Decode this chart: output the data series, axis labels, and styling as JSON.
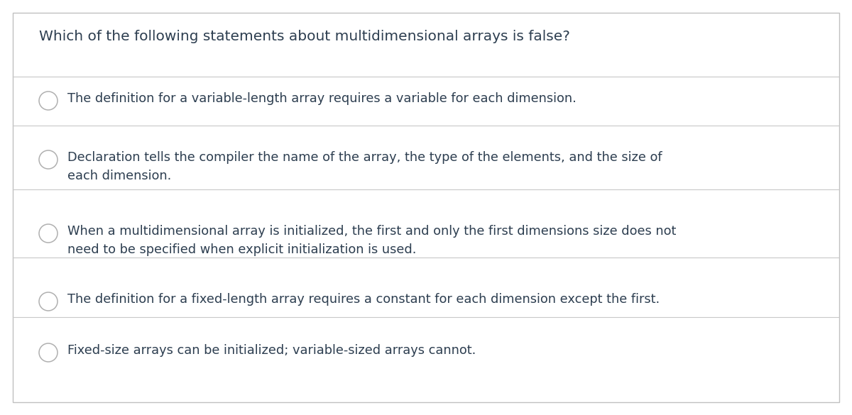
{
  "background_color": "#ffffff",
  "border_color": "#c8c8c8",
  "title": "Which of the following statements about multidimensional arrays is false?",
  "title_color": "#2d3e50",
  "title_fontsize": 14.5,
  "options": [
    "The definition for a variable-length array requires a variable for each dimension.",
    "Declaration tells the compiler the name of the array, the type of the elements, and the size of\neach dimension.",
    "When a multidimensional array is initialized, the first and only the first dimensions size does not\nneed to be specified when explicit initialization is used.",
    "The definition for a fixed-length array requires a constant for each dimension except the first.",
    "Fixed-size arrays can be initialized; variable-sized arrays cannot."
  ],
  "option_color": "#2d3e50",
  "option_fontsize": 12.8,
  "divider_color": "#c8c8c8",
  "circle_edge_color": "#b0b0b0",
  "outer_border_color": "#c0c0c0"
}
